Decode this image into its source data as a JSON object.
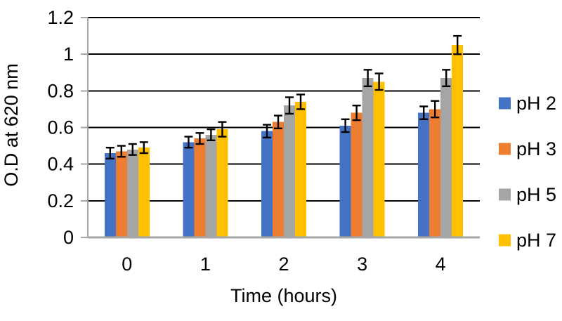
{
  "chart_data": {
    "type": "bar",
    "title": "",
    "xlabel": "Time (hours)",
    "ylabel": "O.D at 620 nm",
    "categories": [
      "0",
      "1",
      "2",
      "3",
      "4"
    ],
    "series": [
      {
        "name": "pH 2",
        "color": "#4472C4",
        "values": [
          0.46,
          0.52,
          0.58,
          0.61,
          0.68
        ],
        "errors": [
          0.03,
          0.03,
          0.035,
          0.035,
          0.035
        ]
      },
      {
        "name": "pH 3",
        "color": "#ED7D31",
        "values": [
          0.47,
          0.54,
          0.63,
          0.68,
          0.7
        ],
        "errors": [
          0.03,
          0.03,
          0.035,
          0.04,
          0.045
        ]
      },
      {
        "name": "pH 5",
        "color": "#A5A5A5",
        "values": [
          0.48,
          0.56,
          0.72,
          0.87,
          0.87
        ],
        "errors": [
          0.03,
          0.03,
          0.045,
          0.045,
          0.045
        ]
      },
      {
        "name": "pH 7",
        "color": "#FFC000",
        "values": [
          0.49,
          0.59,
          0.74,
          0.85,
          1.05
        ],
        "errors": [
          0.03,
          0.04,
          0.04,
          0.045,
          0.05
        ]
      }
    ],
    "ylim": [
      0,
      1.2
    ],
    "ytick_step": 0.2,
    "ytick_labels": [
      "0",
      "0.2",
      "0.4",
      "0.6",
      "0.8",
      "1",
      "1.2"
    ],
    "grid": "horizontal",
    "legend_position": "right",
    "error_bars": true
  },
  "colors": {
    "gridline": "#000000",
    "axis_line": "#A6A6A6",
    "error_bar": "#000000",
    "text": "#000000",
    "background": "#FFFFFF"
  }
}
